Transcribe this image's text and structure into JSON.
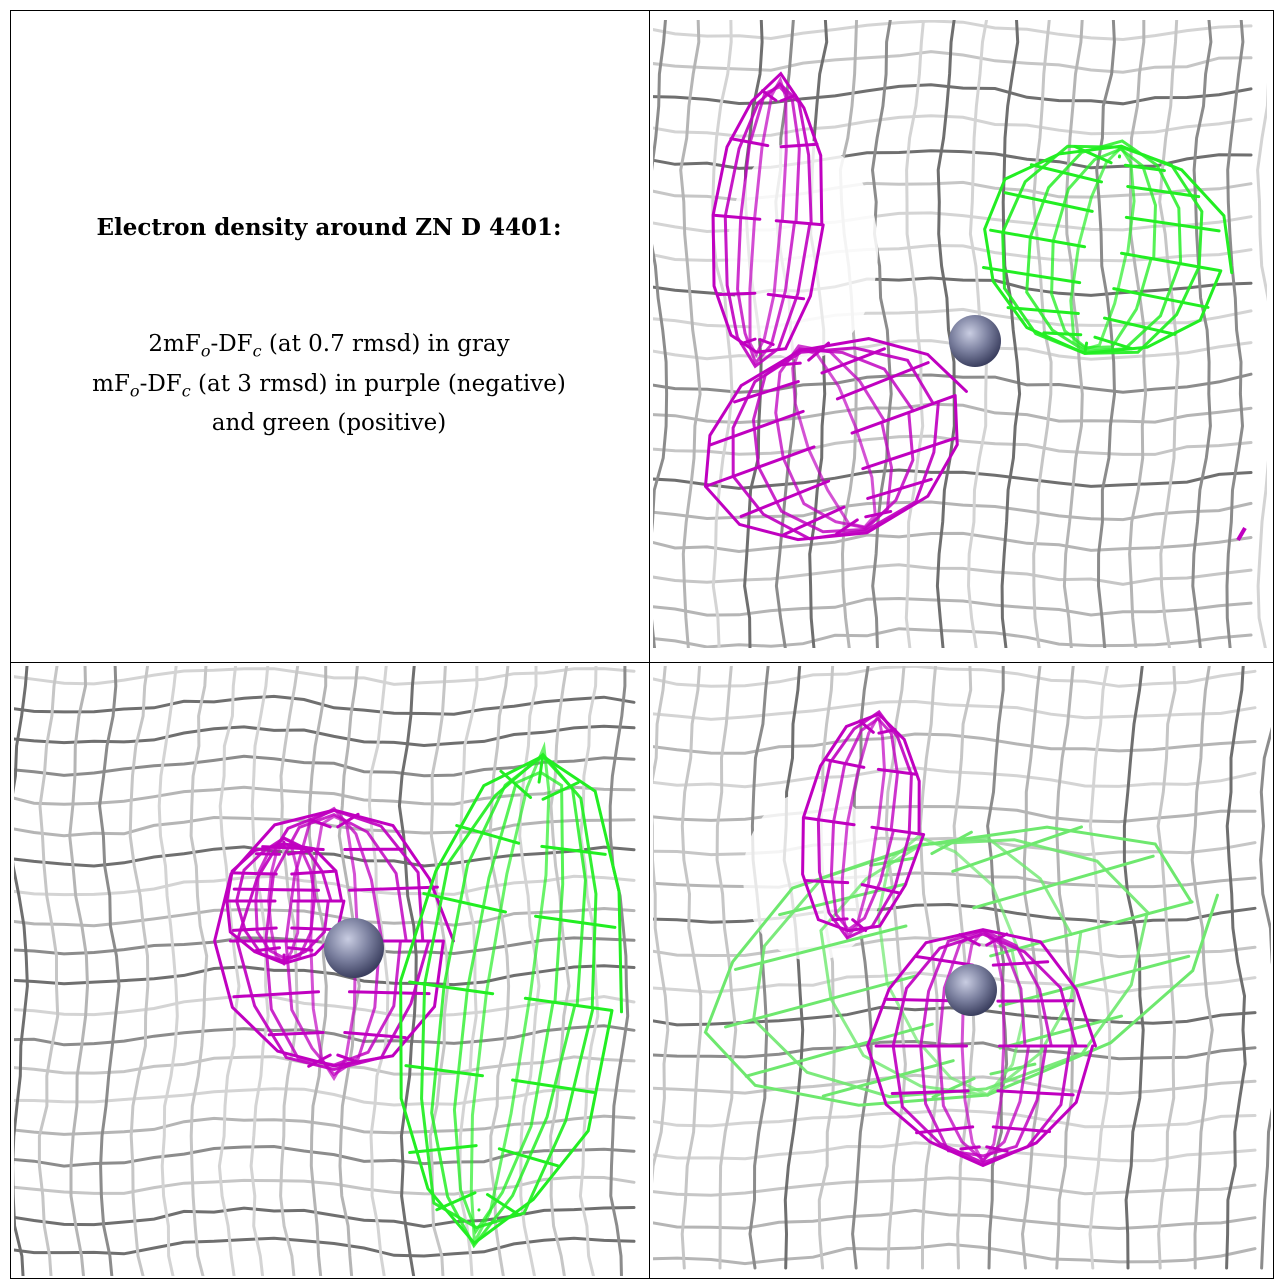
{
  "caption": {
    "title": "Electron density around ZN D 4401:",
    "line1_prefix": "2mF",
    "line1_sub1": "o",
    "line1_mid": "-DF",
    "line1_sub2": "c",
    "line1_suffix": " (at 0.7 rmsd) in gray",
    "line2_prefix": "mF",
    "line2_sub1": "o",
    "line2_mid": "-DF",
    "line2_sub2": "c",
    "line2_suffix": " (at 3 rmsd) in purple (negative)",
    "line3": "and green (positive)"
  },
  "colors": {
    "gray_mesh": "#9a9a9a",
    "gray_mesh_light": "#cfcfcf",
    "purple_mesh": "#c000c0",
    "green_mesh": "#22ee22",
    "zn_sphere": "#7a7f9e"
  },
  "panels": [
    {
      "name": "view-1"
    },
    {
      "name": "view-2"
    },
    {
      "name": "view-3"
    }
  ]
}
